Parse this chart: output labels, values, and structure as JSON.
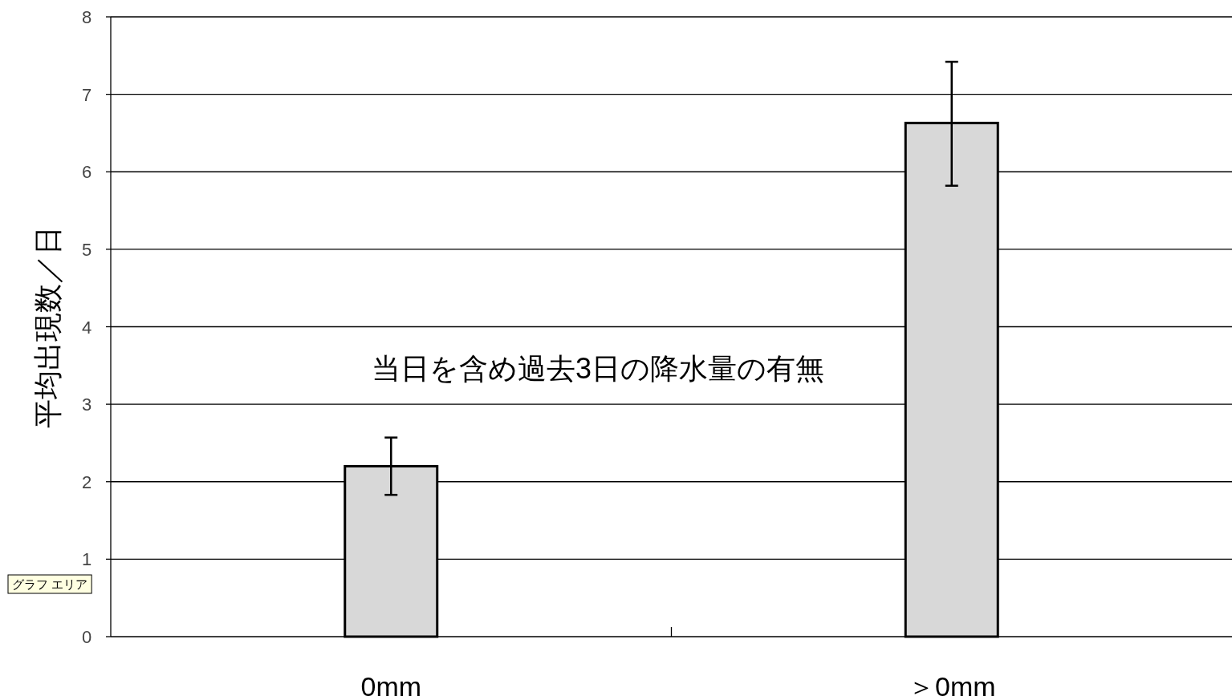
{
  "chart_data": {
    "type": "bar",
    "categories": [
      "0mm",
      "＞0mm"
    ],
    "values": [
      2.2,
      6.63
    ],
    "errors": [
      [
        1.83,
        2.57
      ],
      [
        5.82,
        7.42
      ]
    ],
    "color": "#d8d8d8",
    "xlabel": "当日を含め過去3日の降水量の有無",
    "ylabel": "平均出現数／日",
    "ylim": [
      0,
      8
    ],
    "yticks": [
      0,
      1,
      2,
      3,
      4,
      5,
      6,
      7,
      8
    ],
    "grid": "y",
    "annotations": [
      "グラフ エリア"
    ]
  }
}
